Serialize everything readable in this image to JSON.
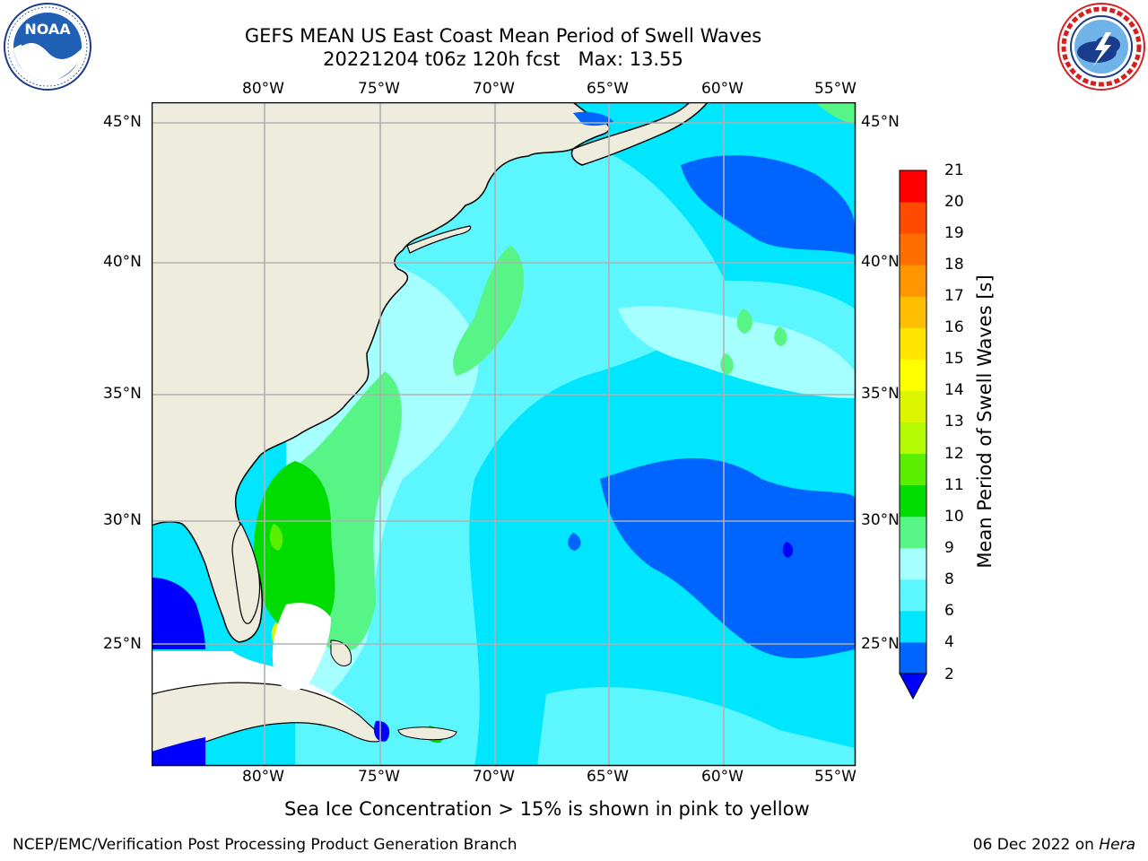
{
  "title": {
    "line1": "GEFS MEAN US East Coast Mean Period of Swell Waves",
    "line2_date": "20221204 t06z 120h fcst",
    "line2_max": "Max: 13.55"
  },
  "map": {
    "region": "US East Coast / Western North Atlantic",
    "lon_labels": [
      "80°W",
      "75°W",
      "70°W",
      "65°W",
      "60°W",
      "55°W"
    ],
    "lat_labels": [
      "45°N",
      "40°N",
      "35°N",
      "30°N",
      "25°N"
    ],
    "colors": {
      "land": "#eeecdc",
      "gridline": "#b0b0b0",
      "coastline": "#000000",
      "no_data": "#ffffff"
    }
  },
  "colorbar": {
    "label": "Mean Period of Swell Waves [s]",
    "ticks": [
      "21",
      "20",
      "19",
      "18",
      "17",
      "16",
      "15",
      "14",
      "13",
      "12",
      "11",
      "10",
      "9",
      "8",
      "6",
      "4",
      "2"
    ],
    "colors_bottom_to_top": [
      "#0064ff",
      "#00e6ff",
      "#5cf6ff",
      "#a6ffff",
      "#56f585",
      "#00dc00",
      "#5aef00",
      "#b4fa00",
      "#dcf500",
      "#ffff00",
      "#ffe600",
      "#ffbe00",
      "#ff9600",
      "#ff6e00",
      "#ff4b00",
      "#ff0000"
    ],
    "underflow_color": "#0000ff"
  },
  "footnote": "Sea Ice Concentration > 15% is shown in pink to yellow",
  "footer": {
    "left": "NCEP/EMC/Verification Post Processing Product Generation Branch",
    "right_date": "06 Dec 2022 on",
    "right_machine": "Hera"
  },
  "logos": {
    "left": "noaa-logo",
    "right": "national-weather-service-logo"
  }
}
